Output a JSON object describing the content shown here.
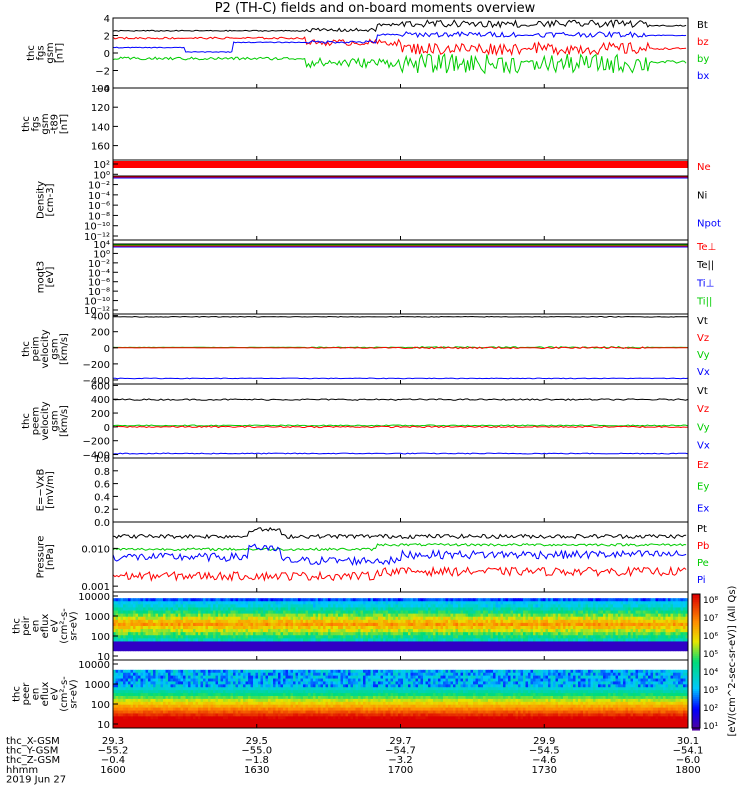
{
  "title": "P2 (TH-C) fields and on-board moments overview",
  "panels": [
    {
      "key": "fgs",
      "ylabel": [
        "thc",
        "fgs",
        "gsm",
        "[nT]"
      ],
      "ticks": [
        "4",
        "2",
        "0",
        "−2",
        "−4"
      ],
      "tick_values": [
        4,
        2,
        0,
        -2,
        -4
      ],
      "ylim": [
        -4,
        4
      ],
      "legend": [
        {
          "text": "Bt",
          "color": "#000000"
        },
        {
          "text": "bz",
          "color": "#ff0000"
        },
        {
          "text": "by",
          "color": "#00cc00"
        },
        {
          "text": "bx",
          "color": "#0000ff"
        }
      ]
    },
    {
      "key": "fgs_btot",
      "ylabel": [
        "thc",
        "fgs",
        "gsm",
        "-t89",
        "[nT]"
      ],
      "ticks": [
        "100",
        "120",
        "140",
        "160"
      ],
      "tick_values": [
        100,
        120,
        140,
        160
      ],
      "ylim": [
        100,
        175
      ],
      "legend": []
    },
    {
      "key": "density",
      "ylabel": [
        "Density",
        "[cm-3]"
      ],
      "ticks": [
        "10²",
        "10⁰",
        "10⁻²",
        "10⁻⁴",
        "10⁻⁶",
        "10⁻⁸",
        "10⁻¹⁰",
        "10⁻¹²"
      ],
      "legend": [
        {
          "text": "Ne",
          "color": "#ff0000"
        },
        {
          "text": "Ni",
          "color": "#000000"
        },
        {
          "text": "Npot",
          "color": "#0000ff"
        }
      ]
    },
    {
      "key": "temperature",
      "ylabel": [
        "moqt3",
        "[eV]"
      ],
      "ticks": [
        "10⁴",
        "10⁰",
        "10⁻²",
        "10⁻⁴",
        "10⁻⁶",
        "10⁻⁸",
        "10⁻¹⁰",
        "10⁻¹²"
      ],
      "legend": [
        {
          "text": "Te⊥",
          "color": "#ff0000"
        },
        {
          "text": "Te||",
          "color": "#000000"
        },
        {
          "text": "Ti⊥",
          "color": "#0000ff"
        },
        {
          "text": "Ti||",
          "color": "#00cc00"
        }
      ]
    },
    {
      "key": "peim_velocity",
      "ylabel": [
        "thc",
        "peim",
        "velocity",
        "gsm",
        "[km/s]"
      ],
      "ticks": [
        "400",
        "200",
        "0",
        "−200",
        "−400"
      ],
      "tick_values": [
        400,
        200,
        0,
        -200,
        -400
      ],
      "ylim": [
        -450,
        420
      ],
      "legend": [
        {
          "text": "Vt",
          "color": "#000000"
        },
        {
          "text": "Vz",
          "color": "#ff0000"
        },
        {
          "text": "Vy",
          "color": "#00cc00"
        },
        {
          "text": "Vx",
          "color": "#0000ff"
        }
      ]
    },
    {
      "key": "peem_velocity",
      "ylabel": [
        "thc",
        "peem",
        "velocity",
        "gsm",
        "[km/s]"
      ],
      "ticks": [
        "600",
        "400",
        "200",
        "0",
        "−200",
        "−400"
      ],
      "tick_values": [
        600,
        400,
        200,
        0,
        -200,
        -400
      ],
      "ylim": [
        -450,
        620
      ],
      "legend": [
        {
          "text": "Vt",
          "color": "#000000"
        },
        {
          "text": "Vz",
          "color": "#ff0000"
        },
        {
          "text": "Vy",
          "color": "#00cc00"
        },
        {
          "text": "Vx",
          "color": "#0000ff"
        }
      ]
    },
    {
      "key": "efield",
      "ylabel": [
        "E=−VxB",
        "[mV/m]"
      ],
      "ticks": [
        "1.0",
        "0.8",
        "0.6",
        "0.4",
        "0.2",
        "0.0"
      ],
      "tick_values": [
        1.0,
        0.8,
        0.6,
        0.4,
        0.2,
        0.0
      ],
      "ylim": [
        0,
        1
      ],
      "legend": [
        {
          "text": "Ez",
          "color": "#ff0000"
        },
        {
          "text": "Ey",
          "color": "#00cc00"
        },
        {
          "text": "Ex",
          "color": "#0000ff"
        }
      ]
    },
    {
      "key": "pressure",
      "ylabel": [
        "Pressure",
        "[nPa]"
      ],
      "ticks": [
        "0.010",
        "0.001"
      ],
      "tick_values": [
        0.01,
        0.001
      ],
      "ylim": [
        0.0007,
        0.05
      ],
      "legend": [
        {
          "text": "Pt",
          "color": "#000000"
        },
        {
          "text": "Pb",
          "color": "#ff0000"
        },
        {
          "text": "Pe",
          "color": "#00cc00"
        },
        {
          "text": "Pi",
          "color": "#0000ff"
        }
      ]
    },
    {
      "key": "peir_eflux",
      "ylabel": [
        "thc",
        "peir",
        "en",
        "eflux",
        "eV",
        "(cm²-s-",
        "sr-eV)"
      ],
      "ticks": [
        "10000",
        "1000",
        "100",
        "10"
      ],
      "legend": []
    },
    {
      "key": "peer_eflux",
      "ylabel": [
        "thc",
        "peer",
        "en",
        "eflux",
        "eV",
        "(cm²-s-",
        "sr-eV)"
      ],
      "ticks": [
        "10000",
        "1000",
        "100",
        "10"
      ],
      "legend": []
    }
  ],
  "colorbar": {
    "ticks": [
      "10⁸",
      "10⁷",
      "10⁶",
      "10⁵",
      "10⁴",
      "10³",
      "10²",
      "10¹"
    ],
    "label": "[eV/(cm^2-sec-sr-eV)] (All Qs)"
  },
  "xaxis": {
    "rows": [
      {
        "label": "thc_X-GSM",
        "values": [
          "29.3",
          "29.5",
          "29.7",
          "29.9",
          "30.1"
        ]
      },
      {
        "label": "thc_Y-GSM",
        "values": [
          "−55.2",
          "−55.0",
          "−54.7",
          "−54.5",
          "−54.1"
        ]
      },
      {
        "label": "thc_Z-GSM",
        "values": [
          "−0.4",
          "−1.8",
          "−3.2",
          "−4.6",
          "−6.0"
        ]
      },
      {
        "label": "hhmm",
        "values": [
          "1600",
          "1630",
          "1700",
          "1730",
          "1800"
        ]
      }
    ],
    "date": "2019 Jun 27",
    "time_ticks_minutes": [
      0,
      30,
      60,
      90,
      120
    ],
    "time_range_minutes": [
      0,
      120
    ]
  },
  "chart_data": [
    {
      "type": "line",
      "title": "P2 (TH-C) fields and on-board moments overview",
      "ylabel": "thc fgs gsm [nT]",
      "ylim": [
        -4,
        4
      ],
      "x": [
        0,
        15,
        30,
        45,
        60,
        75,
        90,
        105,
        120
      ],
      "series": [
        {
          "name": "Bt",
          "values": [
            2.6,
            2.4,
            2.2,
            2.5,
            3.0,
            3.4,
            3.2,
            2.8,
            2.7
          ]
        },
        {
          "name": "bz",
          "values": [
            1.8,
            1.7,
            1.5,
            1.3,
            0.5,
            0.4,
            0.6,
            0.2,
            -0.3
          ]
        },
        {
          "name": "by",
          "values": [
            -0.4,
            -0.6,
            -0.9,
            -1.0,
            -1.1,
            -1.1,
            -1.0,
            -1.0,
            -1.0
          ]
        },
        {
          "name": "bx",
          "values": [
            0.6,
            0.5,
            2.0,
            1.6,
            1.8,
            2.0,
            2.0,
            2.2,
            2.2
          ]
        }
      ]
    },
    {
      "type": "line",
      "ylabel": "[cm-3]",
      "series": [
        {
          "name": "Ne"
        },
        {
          "name": "Ni"
        },
        {
          "name": "Npot"
        }
      ]
    },
    {
      "type": "line",
      "ylabel": "[eV]",
      "series": [
        {
          "name": "Te⊥"
        },
        {
          "name": "Te||"
        },
        {
          "name": "Ti⊥"
        },
        {
          "name": "Ti||"
        }
      ]
    },
    {
      "type": "line",
      "ylabel": "thc peim velocity gsm [km/s]",
      "ylim": [
        -450,
        420
      ],
      "x": [
        0,
        30,
        60,
        90,
        120
      ],
      "series": [
        {
          "name": "Vt",
          "values": [
            380,
            380,
            380,
            380,
            380
          ]
        },
        {
          "name": "Vz",
          "values": [
            0,
            0,
            0,
            0,
            0
          ]
        },
        {
          "name": "Vy",
          "values": [
            0,
            0,
            0,
            0,
            0
          ]
        },
        {
          "name": "Vx",
          "values": [
            -380,
            -380,
            -380,
            -380,
            -380
          ]
        }
      ]
    },
    {
      "type": "line",
      "ylabel": "thc peem velocity gsm [km/s]",
      "ylim": [
        -450,
        620
      ],
      "x": [
        0,
        30,
        60,
        90,
        120
      ],
      "series": [
        {
          "name": "Vt",
          "values": [
            390,
            390,
            390,
            390,
            390
          ]
        },
        {
          "name": "Vz",
          "values": [
            0,
            0,
            0,
            0,
            0
          ]
        },
        {
          "name": "Vy",
          "values": [
            20,
            20,
            20,
            20,
            20
          ]
        },
        {
          "name": "Vx",
          "values": [
            -380,
            -380,
            -380,
            -380,
            -380
          ]
        }
      ]
    },
    {
      "type": "line",
      "ylabel": "[nPa]",
      "ylim": [
        0.0007,
        0.05
      ],
      "x": [
        0,
        15,
        30,
        45,
        60,
        75,
        90,
        105,
        120
      ],
      "series": [
        {
          "name": "Pt",
          "values": [
            0.02,
            0.02,
            0.019,
            0.021,
            0.021,
            0.022,
            0.022,
            0.023,
            0.023
          ]
        },
        {
          "name": "Pb",
          "values": [
            0.0022,
            0.002,
            0.0018,
            0.0015,
            0.0025,
            0.0028,
            0.0025,
            0.0022,
            0.002
          ]
        },
        {
          "name": "Pe",
          "values": [
            0.0095,
            0.01,
            0.0105,
            0.011,
            0.012,
            0.012,
            0.0125,
            0.013,
            0.014
          ]
        },
        {
          "name": "Pi",
          "values": [
            0.006,
            0.0055,
            0.0045,
            0.005,
            0.0065,
            0.007,
            0.007,
            0.007,
            0.0075
          ]
        }
      ]
    }
  ]
}
